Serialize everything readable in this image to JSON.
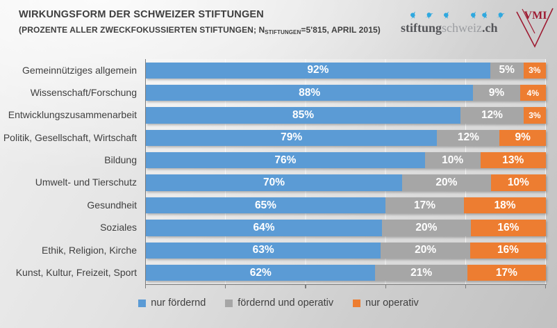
{
  "header": {
    "title": "WIRKUNGSFORM DER SCHWEIZER STIFTUNGEN",
    "subtitle_pre": "(PROZENTE ALLER ZWECKFOKUSSIERTEN STIFTUNGEN; N",
    "subtitle_sub": "STIFTUNGEN",
    "subtitle_post": "=5'815, APRIL 2015)"
  },
  "logos": {
    "stiftungschweiz": {
      "part_bold_1": "stiftung",
      "part_light": "schweiz",
      "part_bold_2": ".ch",
      "bird_icon_color": "#2fa8df"
    },
    "vmi": {
      "label": "VMI",
      "color": "#9e1b32"
    }
  },
  "chart_data": {
    "type": "bar",
    "orientation": "horizontal",
    "stacked": true,
    "title": "Wirkungsform der Schweizer Stiftungen",
    "value_suffix": "%",
    "xlim": [
      0,
      100
    ],
    "gridline_interval_percent": 20,
    "legend_position": "bottom",
    "categories": [
      "Gemeinnütziges allgemein",
      "Wissenschaft/Forschung",
      "Entwicklungszusammenarbeit",
      "Politik, Gesellschaft, Wirtschaft",
      "Bildung",
      "Umwelt- und Tierschutz",
      "Gesundheit",
      "Soziales",
      "Ethik, Religion, Kirche",
      "Kunst, Kultur, Freizeit, Sport"
    ],
    "series": [
      {
        "name": "nur fördernd",
        "color": "#5b9bd5",
        "values": [
          92,
          88,
          85,
          79,
          76,
          70,
          65,
          64,
          63,
          62
        ]
      },
      {
        "name": "fördernd und operativ",
        "color": "#a6a6a6",
        "values": [
          5,
          9,
          12,
          12,
          10,
          20,
          17,
          20,
          20,
          21
        ]
      },
      {
        "name": "nur operativ",
        "color": "#ed7d31",
        "values": [
          3,
          4,
          3,
          9,
          13,
          10,
          18,
          16,
          16,
          17
        ]
      }
    ]
  }
}
